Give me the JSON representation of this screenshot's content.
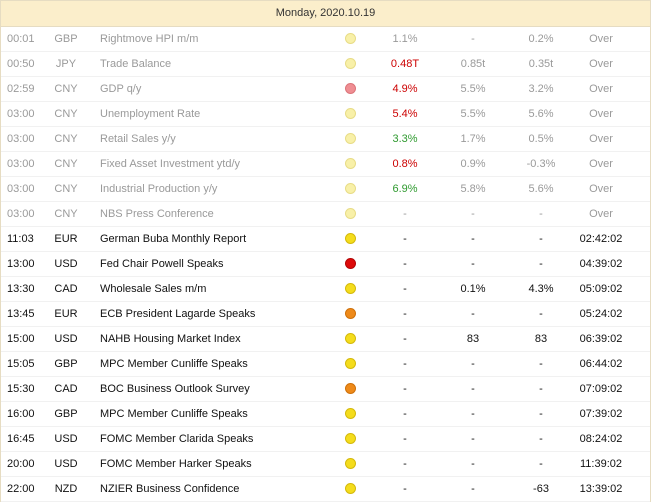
{
  "calendar": {
    "date_header": "Monday, 2020.10.19",
    "events": [
      {
        "time": "00:01",
        "currency": "GBP",
        "event": "Rightmove HPI m/m",
        "importance": "low",
        "actual": "1.1%",
        "actual_color": "",
        "forecast": "-",
        "previous": "0.2%",
        "countdown": "Over",
        "status": "past"
      },
      {
        "time": "00:50",
        "currency": "JPY",
        "event": "Trade Balance",
        "importance": "low",
        "actual": "0.48T",
        "actual_color": "red",
        "forecast": "0.85t",
        "previous": "0.35t",
        "countdown": "Over",
        "status": "past"
      },
      {
        "time": "02:59",
        "currency": "CNY",
        "event": "GDP q/y",
        "importance": "high",
        "actual": "4.9%",
        "actual_color": "red",
        "forecast": "5.5%",
        "previous": "3.2%",
        "countdown": "Over",
        "status": "past"
      },
      {
        "time": "03:00",
        "currency": "CNY",
        "event": "Unemployment Rate",
        "importance": "low",
        "actual": "5.4%",
        "actual_color": "red",
        "forecast": "5.5%",
        "previous": "5.6%",
        "countdown": "Over",
        "status": "past"
      },
      {
        "time": "03:00",
        "currency": "CNY",
        "event": "Retail Sales y/y",
        "importance": "low",
        "actual": "3.3%",
        "actual_color": "green",
        "forecast": "1.7%",
        "previous": "0.5%",
        "countdown": "Over",
        "status": "past"
      },
      {
        "time": "03:00",
        "currency": "CNY",
        "event": "Fixed Asset Investment ytd/y",
        "importance": "low",
        "actual": "0.8%",
        "actual_color": "red",
        "forecast": "0.9%",
        "previous": "-0.3%",
        "countdown": "Over",
        "status": "past"
      },
      {
        "time": "03:00",
        "currency": "CNY",
        "event": "Industrial Production y/y",
        "importance": "low",
        "actual": "6.9%",
        "actual_color": "green",
        "forecast": "5.8%",
        "previous": "5.6%",
        "countdown": "Over",
        "status": "past"
      },
      {
        "time": "03:00",
        "currency": "CNY",
        "event": "NBS Press Conference",
        "importance": "low",
        "actual": "-",
        "actual_color": "",
        "forecast": "-",
        "previous": "-",
        "countdown": "Over",
        "status": "past"
      },
      {
        "time": "11:03",
        "currency": "EUR",
        "event": "German Buba Monthly Report",
        "importance": "low",
        "actual": "-",
        "actual_color": "",
        "forecast": "-",
        "previous": "-",
        "countdown": "02:42:02",
        "status": "upcoming"
      },
      {
        "time": "13:00",
        "currency": "USD",
        "event": "Fed Chair Powell Speaks",
        "importance": "high",
        "actual": "-",
        "actual_color": "",
        "forecast": "-",
        "previous": "-",
        "countdown": "04:39:02",
        "status": "upcoming"
      },
      {
        "time": "13:30",
        "currency": "CAD",
        "event": "Wholesale Sales m/m",
        "importance": "low",
        "actual": "-",
        "actual_color": "",
        "forecast": "0.1%",
        "previous": "4.3%",
        "countdown": "05:09:02",
        "status": "upcoming"
      },
      {
        "time": "13:45",
        "currency": "EUR",
        "event": "ECB President Lagarde Speaks",
        "importance": "med",
        "actual": "-",
        "actual_color": "",
        "forecast": "-",
        "previous": "-",
        "countdown": "05:24:02",
        "status": "upcoming"
      },
      {
        "time": "15:00",
        "currency": "USD",
        "event": "NAHB Housing Market Index",
        "importance": "low",
        "actual": "-",
        "actual_color": "",
        "forecast": "83",
        "previous": "83",
        "countdown": "06:39:02",
        "status": "upcoming"
      },
      {
        "time": "15:05",
        "currency": "GBP",
        "event": "MPC Member Cunliffe Speaks",
        "importance": "low",
        "actual": "-",
        "actual_color": "",
        "forecast": "-",
        "previous": "-",
        "countdown": "06:44:02",
        "status": "upcoming"
      },
      {
        "time": "15:30",
        "currency": "CAD",
        "event": "BOC Business Outlook Survey",
        "importance": "med",
        "actual": "-",
        "actual_color": "",
        "forecast": "-",
        "previous": "-",
        "countdown": "07:09:02",
        "status": "upcoming"
      },
      {
        "time": "16:00",
        "currency": "GBP",
        "event": "MPC Member Cunliffe Speaks",
        "importance": "low",
        "actual": "-",
        "actual_color": "",
        "forecast": "-",
        "previous": "-",
        "countdown": "07:39:02",
        "status": "upcoming"
      },
      {
        "time": "16:45",
        "currency": "USD",
        "event": "FOMC Member Clarida Speaks",
        "importance": "low",
        "actual": "-",
        "actual_color": "",
        "forecast": "-",
        "previous": "-",
        "countdown": "08:24:02",
        "status": "upcoming"
      },
      {
        "time": "20:00",
        "currency": "USD",
        "event": "FOMC Member Harker Speaks",
        "importance": "low",
        "actual": "-",
        "actual_color": "",
        "forecast": "-",
        "previous": "-",
        "countdown": "11:39:02",
        "status": "upcoming"
      },
      {
        "time": "22:00",
        "currency": "NZD",
        "event": "NZIER Business Confidence",
        "importance": "low",
        "actual": "-",
        "actual_color": "",
        "forecast": "-",
        "previous": "-63",
        "countdown": "13:39:02",
        "status": "upcoming"
      }
    ]
  }
}
